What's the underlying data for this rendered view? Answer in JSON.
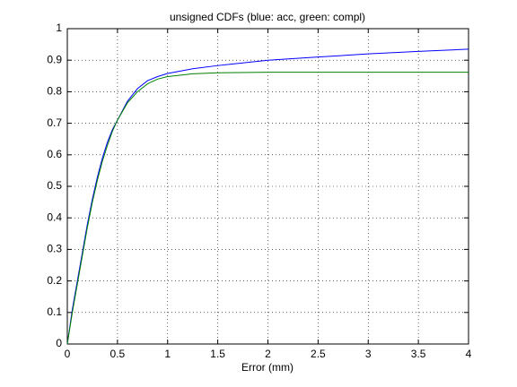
{
  "chart_data": {
    "type": "line",
    "title": "unsigned CDFs (blue: acc, green: compl)",
    "x_label": "Error (mm)",
    "x": [
      0,
      0.05,
      0.1,
      0.15,
      0.2,
      0.25,
      0.3,
      0.35,
      0.4,
      0.45,
      0.5,
      0.6,
      0.7,
      0.8,
      0.9,
      1.0,
      1.25,
      1.5,
      2.0,
      2.5,
      3.0,
      3.5,
      4.0
    ],
    "series": [
      {
        "color": "#0000ff",
        "values": [
          0,
          0.11,
          0.2,
          0.29,
          0.38,
          0.46,
          0.53,
          0.59,
          0.64,
          0.68,
          0.71,
          0.77,
          0.81,
          0.835,
          0.848,
          0.858,
          0.873,
          0.883,
          0.9,
          0.91,
          0.92,
          0.928,
          0.935
        ]
      },
      {
        "color": "#008000",
        "values": [
          0,
          0.1,
          0.19,
          0.28,
          0.37,
          0.45,
          0.52,
          0.58,
          0.63,
          0.675,
          0.71,
          0.765,
          0.8,
          0.825,
          0.84,
          0.848,
          0.857,
          0.86,
          0.862,
          0.862,
          0.862,
          0.862,
          0.862
        ]
      }
    ],
    "xlim": [
      0,
      4
    ],
    "ylim": [
      0,
      1
    ],
    "xticks": [
      0,
      0.5,
      1,
      1.5,
      2,
      2.5,
      3,
      3.5,
      4
    ],
    "yticks": [
      0,
      0.1,
      0.2,
      0.3,
      0.4,
      0.5,
      0.6,
      0.7,
      0.8,
      0.9,
      1
    ],
    "grid": true
  }
}
